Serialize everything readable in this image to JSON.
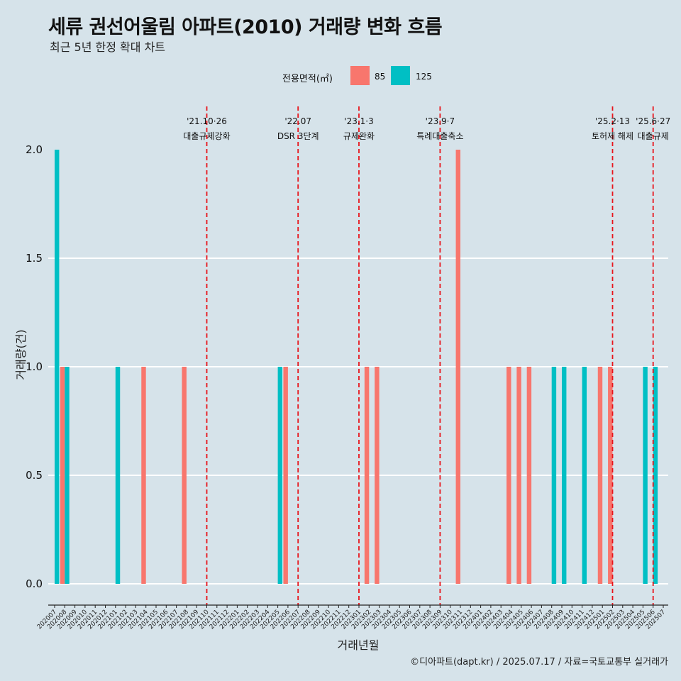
{
  "title": "세류 권선어울림 아파트(2010) 거래량 변화 흐름",
  "subtitle": "최근 5년 한정 확대 차트",
  "footer": "©디아파트(dapt.kr) / 2025.07.17 / 자료=국토교통부 실거래가",
  "legend": {
    "title": "전용면적(㎡)",
    "items": [
      {
        "label": "85",
        "color": "#f8766d"
      },
      {
        "label": "125",
        "color": "#00bfc4"
      }
    ]
  },
  "chart_data": {
    "type": "bar",
    "xlabel": "거래년월",
    "ylabel": "거래량(건)",
    "ylim": [
      0,
      2
    ],
    "yticks": [
      "0.0",
      "0.5",
      "1.0",
      "1.5",
      "2.0"
    ],
    "grid": true,
    "legend_position": "top",
    "categories": [
      "202007",
      "202008",
      "202009",
      "202010",
      "202011",
      "202012",
      "202101",
      "202102",
      "202103",
      "202104",
      "202105",
      "202106",
      "202107",
      "202108",
      "202109",
      "202110",
      "202111",
      "202112",
      "202201",
      "202202",
      "202203",
      "202204",
      "202205",
      "202206",
      "202207",
      "202208",
      "202209",
      "202210",
      "202211",
      "202212",
      "202301",
      "202302",
      "202303",
      "202304",
      "202305",
      "202306",
      "202307",
      "202308",
      "202309",
      "202310",
      "202311",
      "202312",
      "202401",
      "202402",
      "202403",
      "202404",
      "202405",
      "202406",
      "202407",
      "202408",
      "202409",
      "202410",
      "202411",
      "202412",
      "202501",
      "202502",
      "202503",
      "202504",
      "202505",
      "202506",
      "202507"
    ],
    "series": [
      {
        "name": "85",
        "color": "#f8766d",
        "values": [
          0,
          1,
          0,
          0,
          0,
          0,
          0,
          0,
          0,
          1,
          0,
          0,
          0,
          1,
          0,
          0,
          0,
          0,
          0,
          0,
          0,
          0,
          0,
          1,
          0,
          0,
          0,
          0,
          0,
          0,
          0,
          1,
          1,
          0,
          0,
          0,
          0,
          0,
          0,
          0,
          2,
          0,
          0,
          0,
          0,
          1,
          1,
          1,
          0,
          0,
          0,
          0,
          0,
          0,
          1,
          1,
          0,
          0,
          0,
          0,
          0
        ]
      },
      {
        "name": "125",
        "color": "#00bfc4",
        "values": [
          2,
          1,
          0,
          0,
          0,
          0,
          1,
          0,
          0,
          0,
          0,
          0,
          0,
          0,
          0,
          0,
          0,
          0,
          0,
          0,
          0,
          0,
          1,
          0,
          0,
          0,
          0,
          0,
          0,
          0,
          0,
          0,
          0,
          0,
          0,
          0,
          0,
          0,
          0,
          0,
          0,
          0,
          0,
          0,
          0,
          0,
          0,
          0,
          0,
          1,
          1,
          0,
          1,
          0,
          0,
          0,
          0,
          0,
          1,
          1,
          0
        ]
      }
    ],
    "annotations": [
      {
        "date": "'21.10·26",
        "label": "대출규제강화",
        "x": "202110"
      },
      {
        "date": "'22.07",
        "label": "DSR 3단계",
        "x": "202207"
      },
      {
        "date": "'23.1·3",
        "label": "규제완화",
        "x": "202301"
      },
      {
        "date": "'23.9·7",
        "label": "특례대출축소",
        "x": "202309"
      },
      {
        "date": "'25.2·13",
        "label": "토허제 해제",
        "x": "202502"
      },
      {
        "date": "'25.6·27",
        "label": "대출규제",
        "x": "202506"
      }
    ]
  }
}
